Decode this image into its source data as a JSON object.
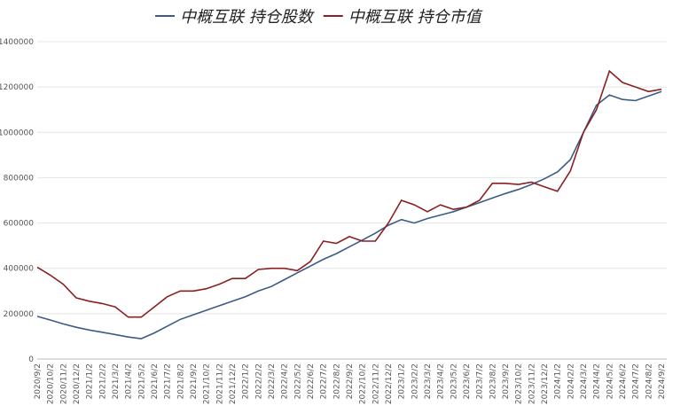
{
  "chart_data": {
    "type": "line",
    "categories": [
      "2020/9/2",
      "2020/10/2",
      "2020/11/2",
      "2020/12/2",
      "2021/1/2",
      "2021/2/2",
      "2021/3/2",
      "2021/4/2",
      "2021/5/2",
      "2021/6/2",
      "2021/7/2",
      "2021/8/2",
      "2021/9/2",
      "2021/10/2",
      "2021/11/2",
      "2021/12/2",
      "2022/1/2",
      "2022/2/2",
      "2022/3/2",
      "2022/4/2",
      "2022/5/2",
      "2022/6/2",
      "2022/7/2",
      "2022/8/2",
      "2022/9/2",
      "2022/10/2",
      "2022/11/2",
      "2022/12/2",
      "2023/1/2",
      "2023/2/2",
      "2023/3/2",
      "2023/4/2",
      "2023/5/2",
      "2023/6/2",
      "2023/7/2",
      "2023/8/2",
      "2023/9/2",
      "2023/10/2",
      "2023/11/2",
      "2023/12/2",
      "2024/1/2",
      "2024/2/2",
      "2024/3/2",
      "2024/4/2",
      "2024/5/2",
      "2024/6/2",
      "2024/7/2",
      "2024/8/2",
      "2024/9/2"
    ],
    "series": [
      {
        "name": "中概互联 持仓股数",
        "color": "#3b5b85",
        "values": [
          188000,
          172000,
          155000,
          140000,
          128000,
          118000,
          108000,
          97000,
          90000,
          115000,
          145000,
          175000,
          195000,
          215000,
          235000,
          255000,
          275000,
          300000,
          320000,
          350000,
          380000,
          410000,
          440000,
          465000,
          495000,
          525000,
          555000,
          590000,
          615000,
          600000,
          620000,
          635000,
          650000,
          670000,
          690000,
          710000,
          730000,
          748000,
          770000,
          795000,
          825000,
          880000,
          1000000,
          1120000,
          1165000,
          1145000,
          1140000,
          1160000,
          1180000
        ]
      },
      {
        "name": "中概互联 持仓市值",
        "color": "#8b1f22",
        "values": [
          405000,
          370000,
          330000,
          270000,
          255000,
          245000,
          230000,
          185000,
          185000,
          230000,
          275000,
          300000,
          300000,
          310000,
          330000,
          355000,
          355000,
          395000,
          400000,
          400000,
          390000,
          430000,
          520000,
          510000,
          540000,
          520000,
          520000,
          600000,
          700000,
          680000,
          650000,
          680000,
          660000,
          670000,
          700000,
          775000,
          775000,
          770000,
          780000,
          760000,
          740000,
          830000,
          1000000,
          1100000,
          1270000,
          1220000,
          1200000,
          1180000,
          1190000
        ]
      }
    ],
    "ylim": [
      0,
      1400000
    ],
    "yticks": [
      0,
      200000,
      400000,
      600000,
      800000,
      1000000,
      1200000,
      1400000
    ],
    "grid": true
  }
}
